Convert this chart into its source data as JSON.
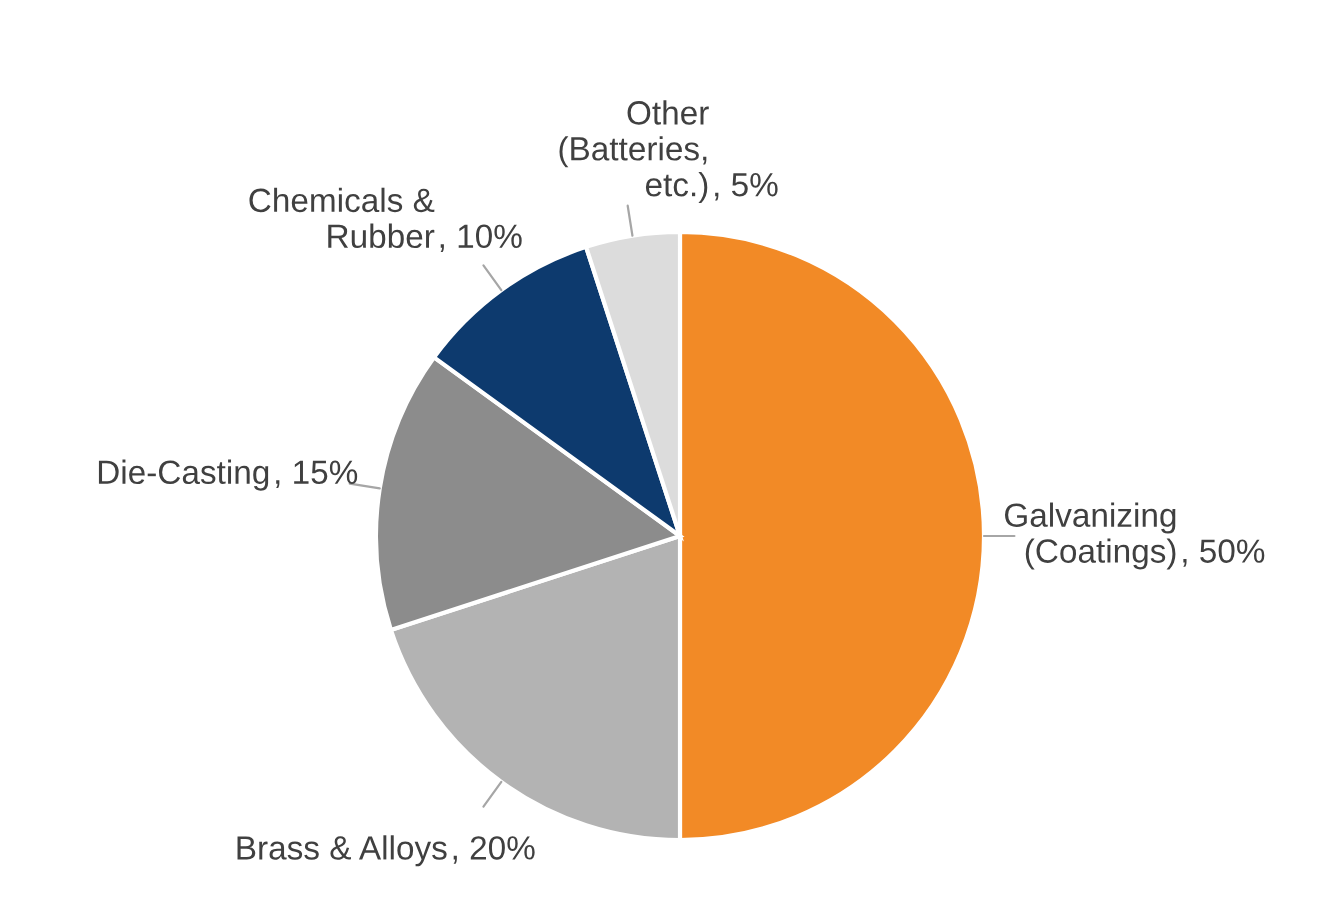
{
  "chart_data": {
    "type": "pie",
    "categories": [
      "Galvanizing (Coatings)",
      "Brass & Alloys",
      "Die-Casting",
      "Chemicals & Rubber",
      "Other (Batteries, etc.)"
    ],
    "values": [
      50,
      20,
      15,
      10,
      5
    ],
    "colors": [
      "#f28a26",
      "#b3b3b3",
      "#8c8c8c",
      "#0d3a6e",
      "#dcdcdc"
    ],
    "value_labels": [
      ", 50%",
      ", 20%",
      ", 15%",
      ", 10%",
      ", 5%"
    ],
    "legend": false
  }
}
